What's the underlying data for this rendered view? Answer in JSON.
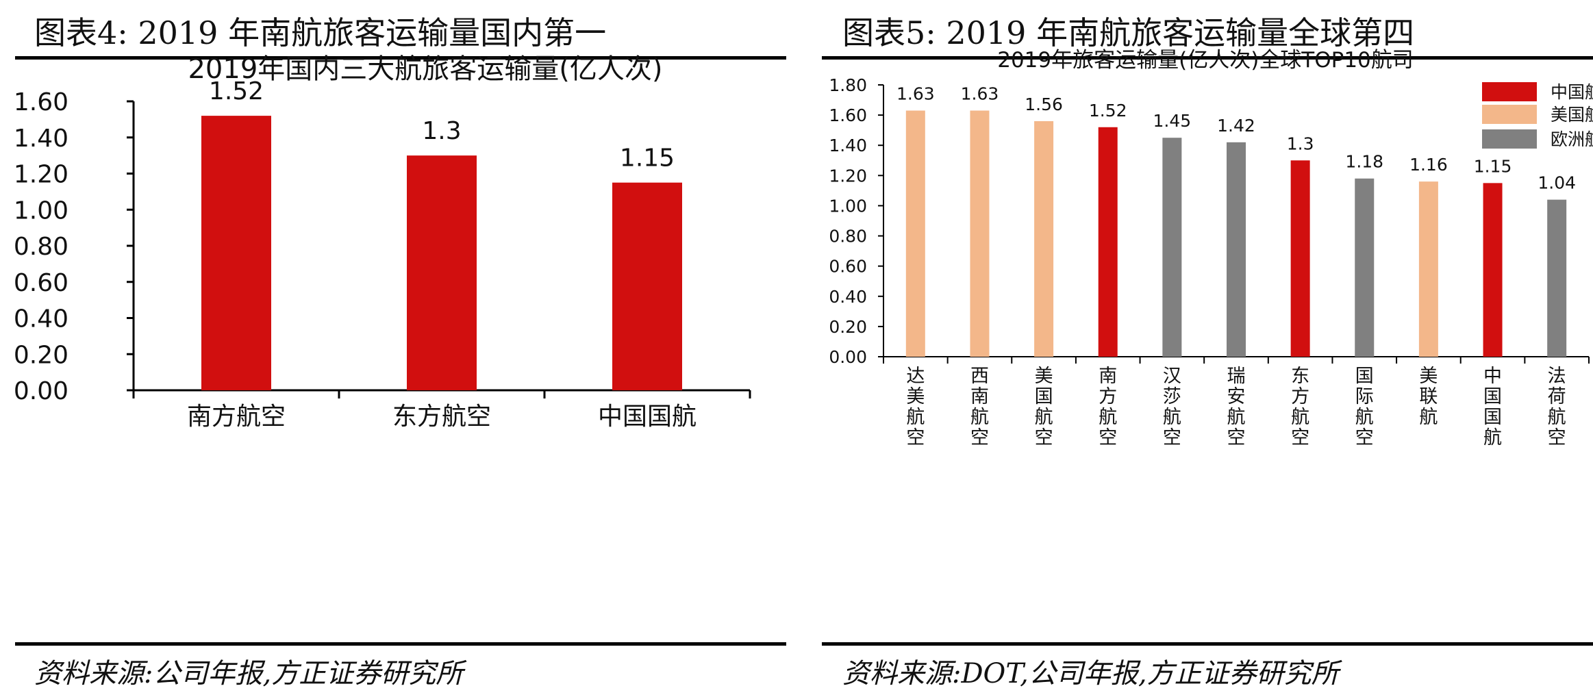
{
  "left": {
    "figure_title": "图表4:  2019 年南航旅客运输量国内第一",
    "source": "资料来源:公司年报,方正证券研究所"
  },
  "right": {
    "figure_title": "图表5:  2019 年南航旅客运输量全球第四",
    "source": "资料来源:DOT,公司年报,方正证券研究所"
  },
  "colors": {
    "china": "#d10f0f",
    "us": "#f3b78a",
    "europe": "#808080"
  },
  "chart_data": [
    {
      "type": "bar",
      "title": "2019年国内三大航旅客运输量(亿人次)",
      "categories": [
        "南方航空",
        "东方航空",
        "中国国航"
      ],
      "values": [
        1.52,
        1.3,
        1.15
      ],
      "value_labels": [
        "1.52",
        "1.3",
        "1.15"
      ],
      "yticks": [
        "0.00",
        "0.20",
        "0.40",
        "0.60",
        "0.80",
        "1.00",
        "1.20",
        "1.40",
        "1.60"
      ],
      "ylim": [
        0,
        1.6
      ],
      "xlabel": "",
      "ylabel": "",
      "grid": false
    },
    {
      "type": "bar",
      "title": "2019年旅客运输量(亿人次)全球TOP10航司",
      "categories": [
        "达美航空",
        "西南航空",
        "美国航空",
        "南方航空",
        "汉莎航空",
        "瑞安航空",
        "东方航空",
        "国际航空",
        "美联航",
        "中国国航",
        "法荷航空"
      ],
      "values": [
        1.63,
        1.63,
        1.56,
        1.52,
        1.45,
        1.42,
        1.3,
        1.18,
        1.16,
        1.15,
        1.04
      ],
      "value_labels": [
        "1.63",
        "1.63",
        "1.56",
        "1.52",
        "1.45",
        "1.42",
        "1.3",
        "1.18",
        "1.16",
        "1.15",
        "1.04"
      ],
      "groups": [
        "us",
        "us",
        "us",
        "china",
        "europe",
        "europe",
        "china",
        "europe",
        "us",
        "china",
        "europe"
      ],
      "legend": [
        {
          "key": "china",
          "label": "中国航司"
        },
        {
          "key": "us",
          "label": "美国航司"
        },
        {
          "key": "europe",
          "label": "欧洲航司"
        }
      ],
      "legend_position": "top-right",
      "yticks": [
        "0.00",
        "0.20",
        "0.40",
        "0.60",
        "0.80",
        "1.00",
        "1.20",
        "1.40",
        "1.60",
        "1.80"
      ],
      "ylim": [
        0,
        1.8
      ],
      "xlabel": "",
      "ylabel": "",
      "grid": false
    }
  ]
}
